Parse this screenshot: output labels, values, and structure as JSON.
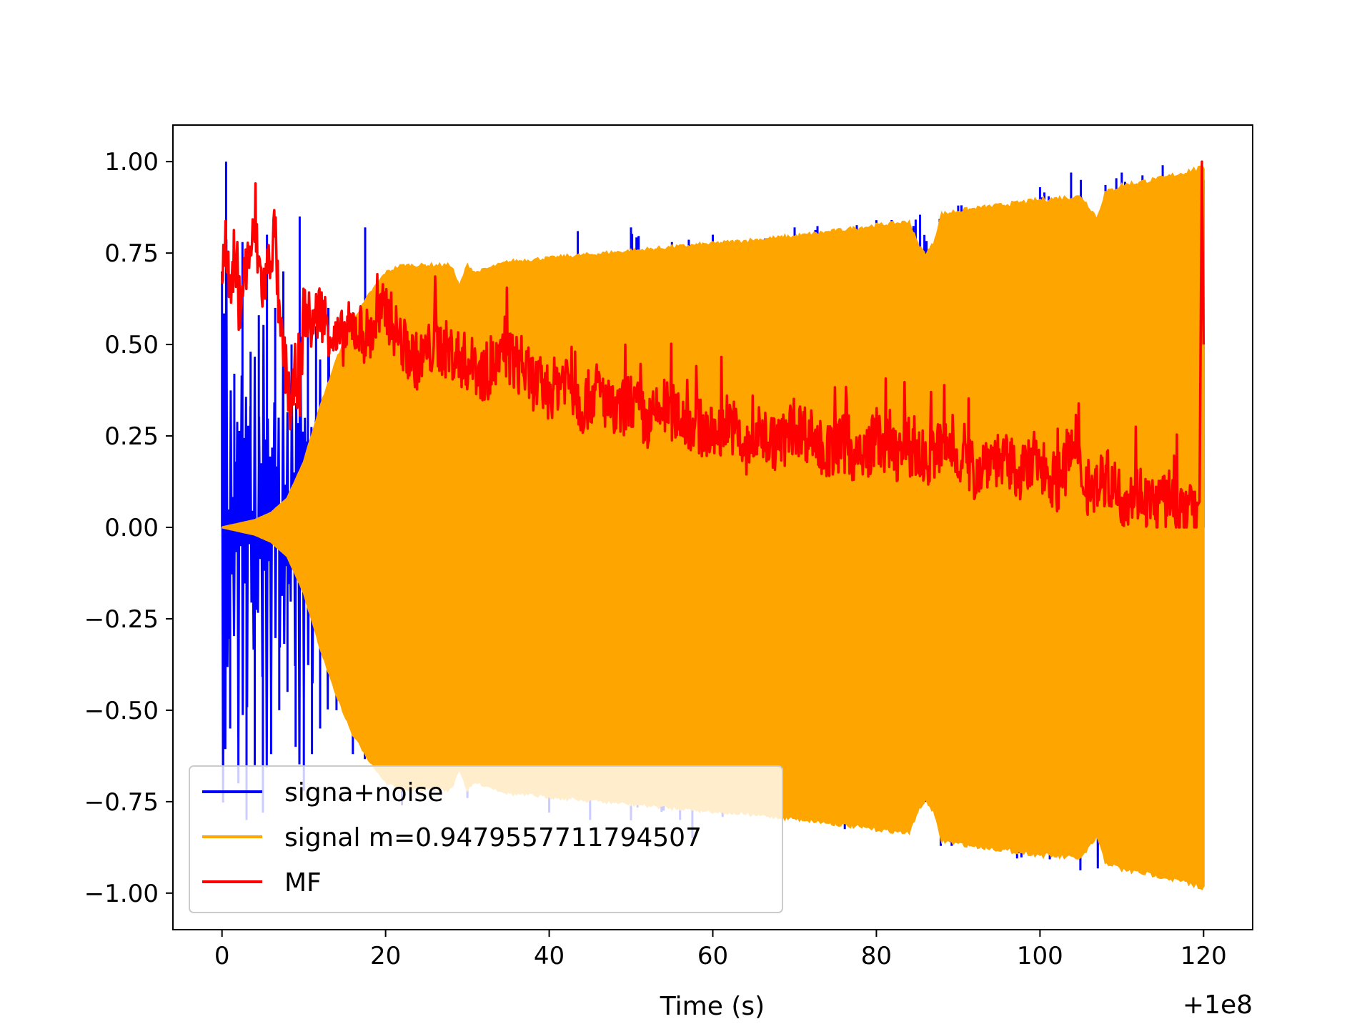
{
  "chart_data": {
    "type": "line",
    "xlabel": "Time (s)",
    "ylabel": "",
    "x_offset_label": "+1e8",
    "xlim": [
      -6,
      126
    ],
    "ylim": [
      -1.1,
      1.1
    ],
    "xticks": [
      0,
      20,
      40,
      60,
      80,
      100,
      120
    ],
    "xtick_labels": [
      "0",
      "20",
      "40",
      "60",
      "80",
      "100",
      "120"
    ],
    "yticks": [
      1.0,
      0.75,
      0.5,
      0.25,
      0.0,
      -0.25,
      -0.5,
      -0.75,
      -1.0
    ],
    "ytick_labels": [
      "1.00",
      "0.75",
      "0.50",
      "0.25",
      "0.00",
      "−0.25",
      "−0.50",
      "−0.75",
      "−1.00"
    ],
    "grid": false,
    "legend_position": "lower-left",
    "series": [
      {
        "name": "signa+noise",
        "color": "#0000ff",
        "x": [
          0,
          0.5,
          1,
          1.5,
          2,
          2.5,
          3,
          3.5,
          4,
          4.5,
          5,
          5.5,
          6,
          6.5,
          7,
          7.5,
          8,
          8.5,
          9,
          9.5,
          10,
          10.5,
          11,
          11.5,
          12,
          13,
          14,
          15,
          16,
          17.5,
          18,
          20,
          22,
          24,
          26,
          28,
          30,
          35,
          40,
          43.5,
          45,
          50,
          55,
          56,
          57.5,
          60,
          70,
          80,
          90,
          100,
          103.8,
          105,
          110,
          115,
          120
        ],
        "y": [
          0.7,
          1.0,
          -0.55,
          0.42,
          -0.7,
          0.78,
          -0.8,
          0.48,
          -0.65,
          0.58,
          -0.78,
          0.8,
          -0.62,
          0.6,
          -0.5,
          0.7,
          -0.45,
          0.5,
          -0.6,
          0.85,
          -0.72,
          0.6,
          -0.62,
          0.55,
          -0.55,
          0.6,
          -0.5,
          0.42,
          -0.62,
          0.82,
          -0.55,
          0.6,
          -0.76,
          0.6,
          -0.72,
          0.62,
          -0.74,
          0.7,
          -0.78,
          0.81,
          -0.8,
          0.82,
          0.78,
          -0.8,
          -0.85,
          0.8,
          0.82,
          0.84,
          0.88,
          0.93,
          0.97,
          0.95,
          0.97,
          0.99,
          0.95
        ]
      },
      {
        "name": "signal m=0.9479557711794507",
        "color": "#ffa500",
        "x": [
          0,
          2,
          4,
          6,
          8,
          10,
          12,
          14,
          16,
          17.5,
          18,
          20,
          22,
          25,
          28,
          29,
          30,
          31,
          35,
          40,
          50,
          60,
          70,
          80,
          84,
          85,
          86,
          87,
          88,
          90,
          100,
          105,
          107,
          108,
          110,
          115,
          120
        ],
        "envelope": [
          0.0,
          0.01,
          0.02,
          0.04,
          0.08,
          0.18,
          0.33,
          0.46,
          0.57,
          0.62,
          0.64,
          0.7,
          0.72,
          0.72,
          0.72,
          0.66,
          0.72,
          0.7,
          0.73,
          0.74,
          0.76,
          0.78,
          0.8,
          0.83,
          0.84,
          0.78,
          0.75,
          0.78,
          0.86,
          0.87,
          0.9,
          0.91,
          0.85,
          0.92,
          0.94,
          0.96,
          0.99
        ]
      },
      {
        "name": "MF",
        "color": "#ff0000",
        "x": [
          0,
          0.5,
          1,
          1.5,
          2,
          3,
          4,
          5,
          6,
          6.5,
          7,
          8,
          8.5,
          9,
          9.5,
          10,
          11,
          12,
          14,
          16,
          18,
          20,
          22,
          24,
          26,
          28,
          30,
          32,
          35,
          38,
          40,
          42,
          44,
          46,
          48,
          50,
          52,
          54,
          56,
          58,
          60,
          62,
          64,
          66,
          68,
          70,
          72,
          74,
          76,
          78,
          80,
          82,
          84,
          86,
          88,
          90,
          92,
          94,
          96,
          98,
          100,
          102,
          104,
          106,
          108,
          110,
          112,
          114,
          116,
          117,
          118,
          119,
          119.5,
          119.8,
          120
        ],
        "y": [
          0.72,
          0.8,
          0.62,
          0.75,
          0.6,
          0.72,
          0.8,
          0.65,
          0.75,
          0.82,
          0.55,
          0.4,
          0.3,
          0.44,
          0.35,
          0.6,
          0.55,
          0.6,
          0.5,
          0.55,
          0.52,
          0.6,
          0.5,
          0.45,
          0.5,
          0.48,
          0.45,
          0.42,
          0.47,
          0.4,
          0.37,
          0.42,
          0.33,
          0.38,
          0.3,
          0.35,
          0.28,
          0.33,
          0.3,
          0.28,
          0.25,
          0.3,
          0.2,
          0.26,
          0.22,
          0.28,
          0.25,
          0.2,
          0.23,
          0.18,
          0.25,
          0.2,
          0.22,
          0.18,
          0.22,
          0.2,
          0.15,
          0.2,
          0.17,
          0.15,
          0.18,
          0.12,
          0.2,
          0.1,
          0.14,
          0.08,
          0.1,
          0.06,
          0.08,
          0.05,
          0.03,
          0.05,
          0.07,
          1.0,
          0.5
        ]
      }
    ]
  }
}
